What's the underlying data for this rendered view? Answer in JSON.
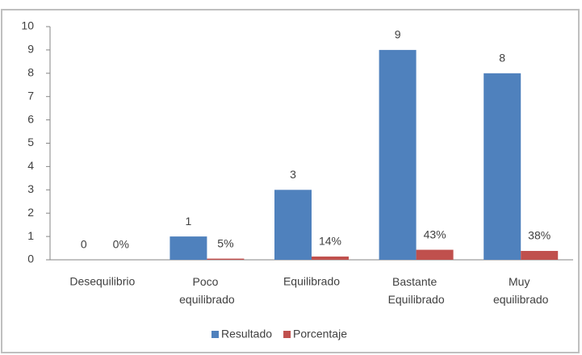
{
  "chart_data": {
    "type": "bar",
    "categories": [
      "Desequilibrio",
      "Poco equilibrado",
      "Equilibrado",
      "Bastante Equilibrado",
      "Muy equilibrado"
    ],
    "series": [
      {
        "name": "Resultado",
        "color": "#4f81bd",
        "values": [
          0,
          1,
          3,
          9,
          8
        ]
      },
      {
        "name": "Porcentaje",
        "color": "#c0504d",
        "values": [
          0,
          0.05,
          0.14,
          0.43,
          0.38
        ],
        "value_labels": [
          "0%",
          "5%",
          "14%",
          "43%",
          "38%"
        ]
      }
    ],
    "ylim": [
      0,
      10
    ],
    "yticks": [
      0,
      1,
      2,
      3,
      4,
      5,
      6,
      7,
      8,
      9,
      10
    ],
    "grid": false,
    "legend": "bottom"
  }
}
